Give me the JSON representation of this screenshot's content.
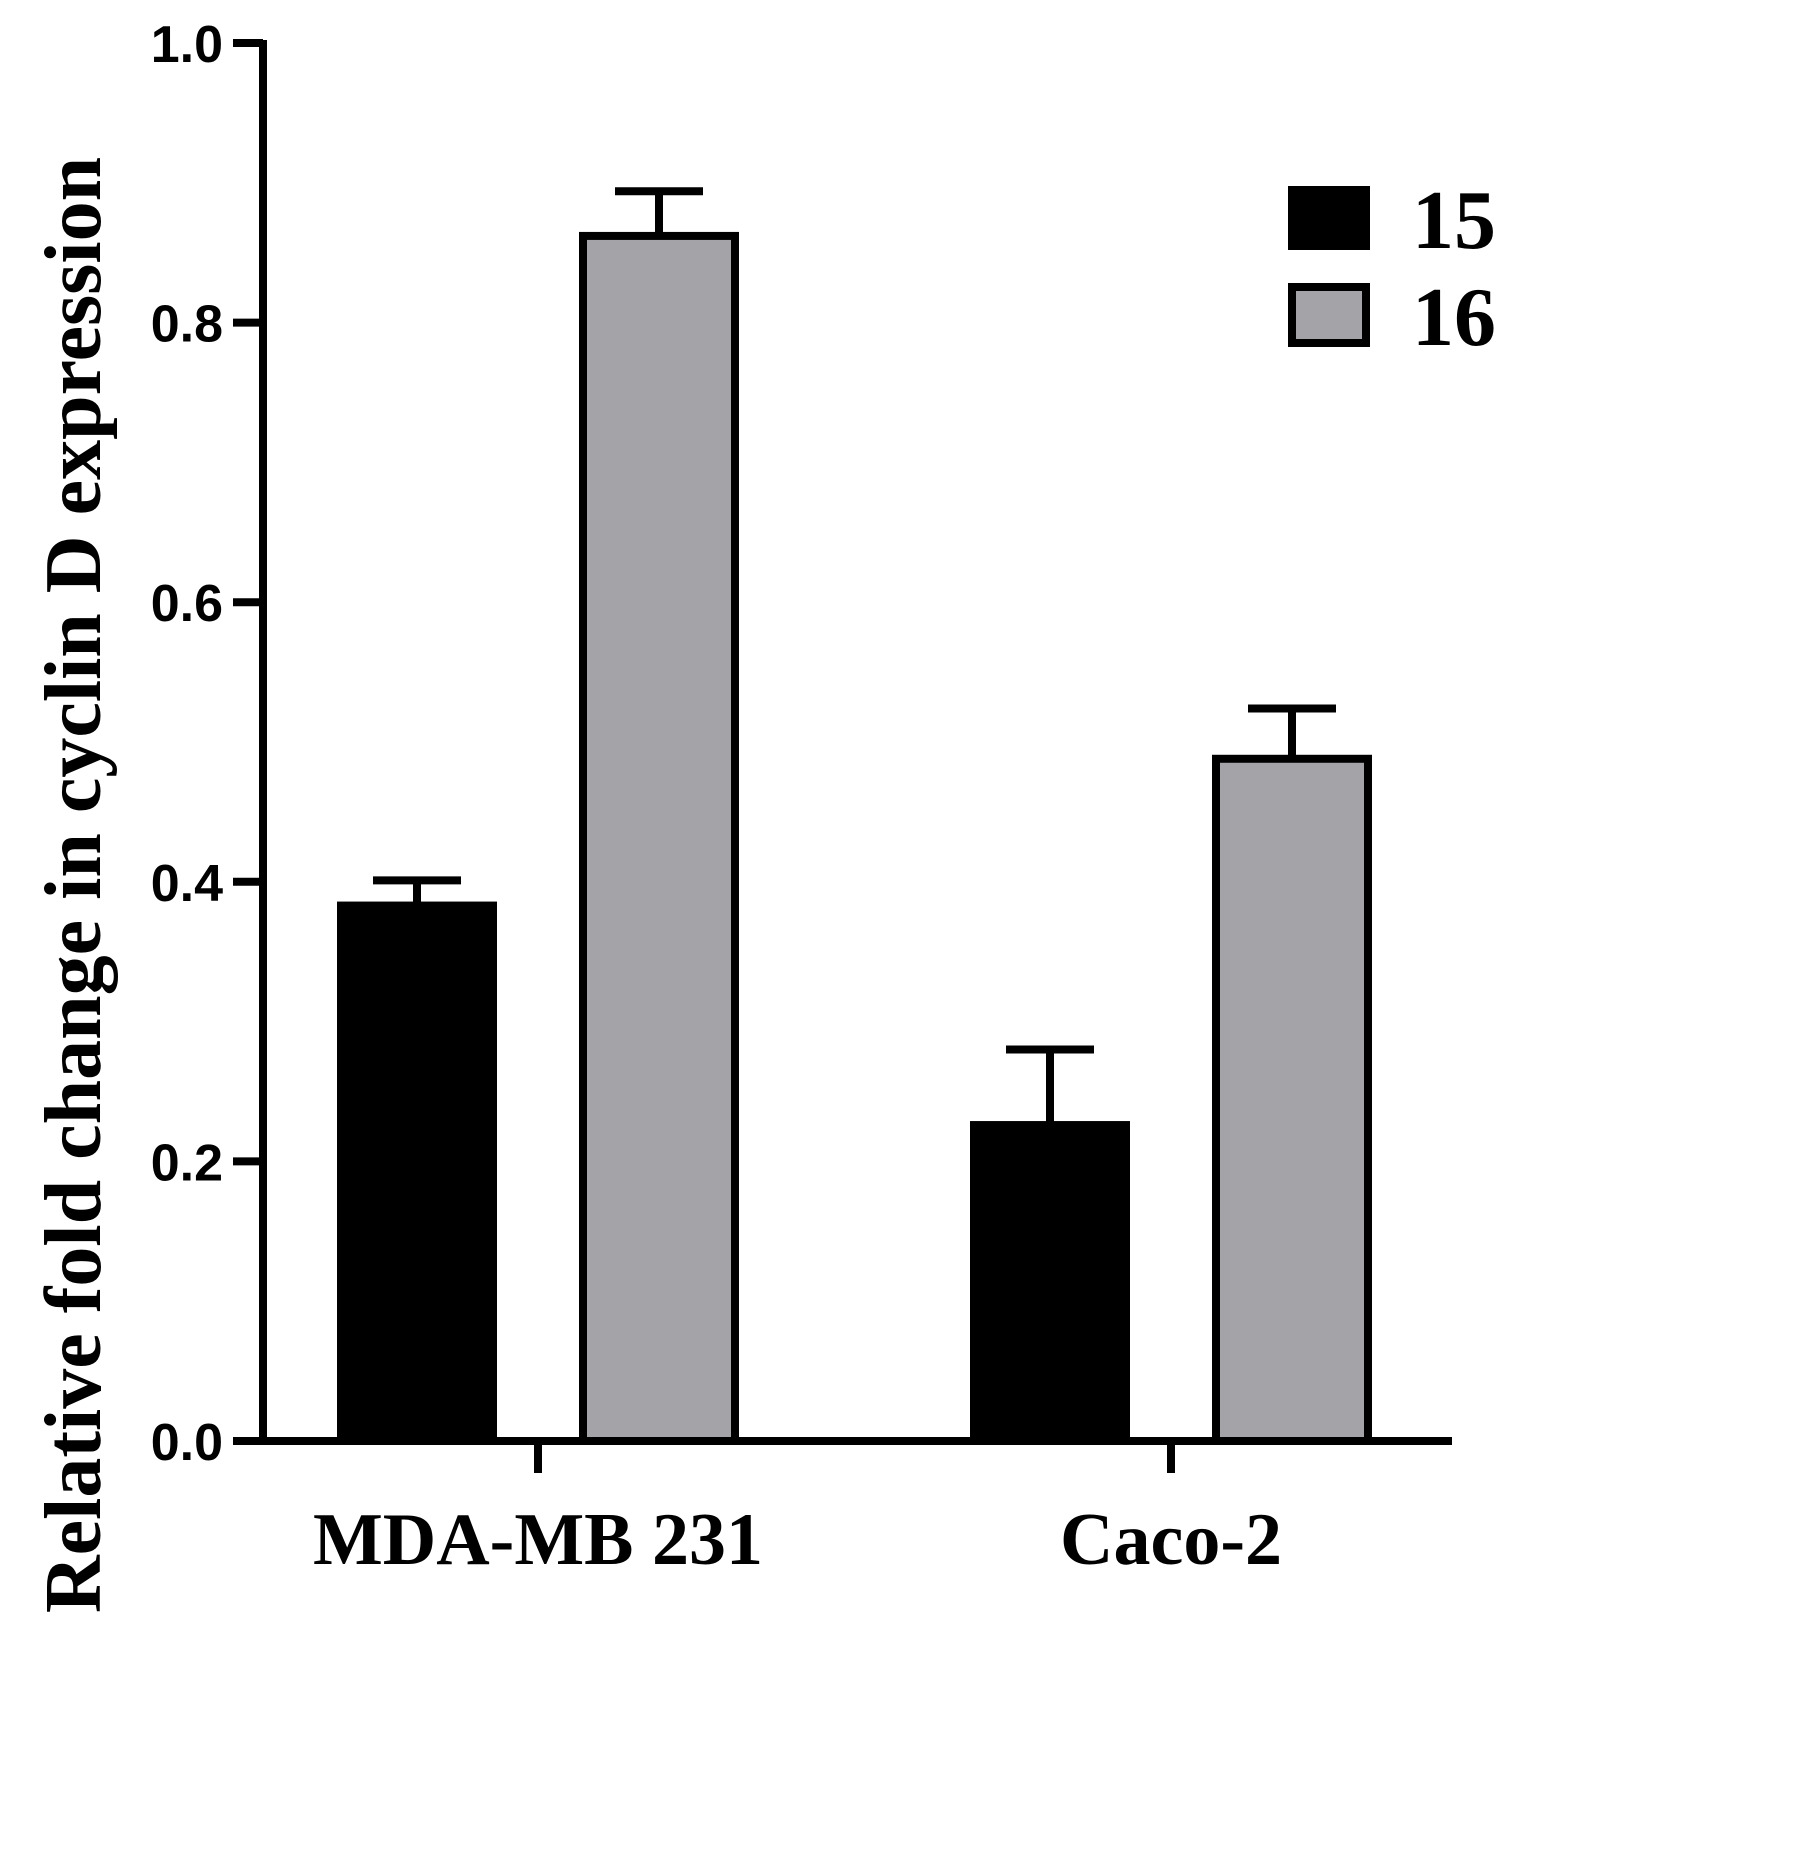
{
  "chart_data": {
    "type": "bar",
    "categories": [
      "MDA-MB 231",
      "Caco-2"
    ],
    "series": [
      {
        "name": "15",
        "values": [
          0.383,
          0.226
        ],
        "errors": [
          0.018,
          0.054
        ],
        "color": "#000000"
      },
      {
        "name": "16",
        "values": [
          0.862,
          0.488
        ],
        "errors": [
          0.032,
          0.036
        ],
        "color": "#a4a3a8"
      }
    ],
    "title": "",
    "xlabel": "",
    "ylabel": "Relative fold change in cyclin D expression",
    "ylim": [
      0,
      1.0
    ],
    "yticks": [
      "0.0",
      "0.2",
      "0.4",
      "0.6",
      "0.8",
      "1.0"
    ],
    "grid": false,
    "legend": "top-right",
    "error_bars": "upper"
  }
}
